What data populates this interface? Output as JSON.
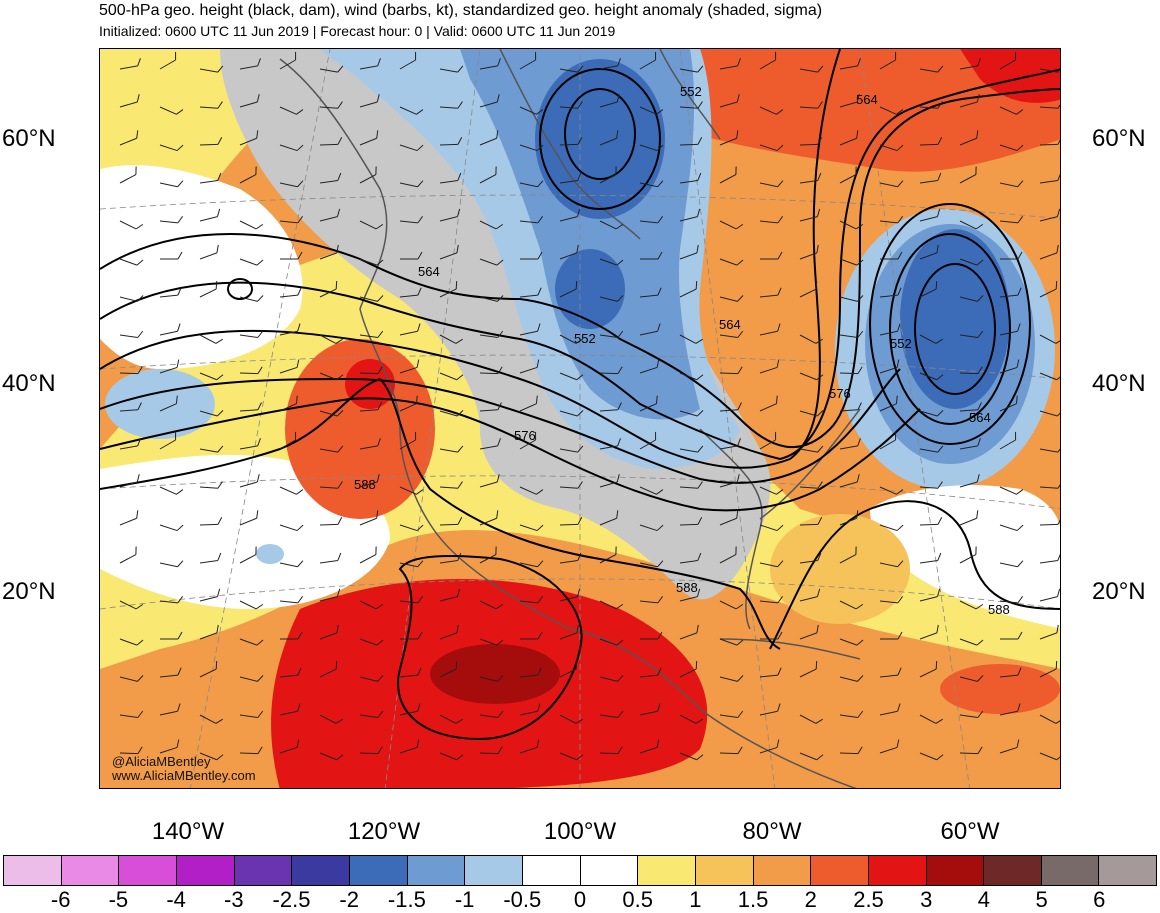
{
  "title": "500-hPa geo. height (black, dam), wind (barbs, kt), standardized geo. height anomaly (shaded, sigma)",
  "subtitle": "Initialized: 0600 UTC 11 Jun 2019 | Forecast hour: 0 | Valid: 0600 UTC 11 Jun 2019",
  "lat_labels": [
    "60°N",
    "40°N",
    "20°N"
  ],
  "lon_labels": [
    "140°W",
    "120°W",
    "100°W",
    "80°W",
    "60°W"
  ],
  "contour_labels": [
    "552",
    "564",
    "564",
    "564",
    "552",
    "576",
    "576",
    "588",
    "588",
    "564",
    "552",
    "588"
  ],
  "credit": {
    "handle": "@AliciaMBentley",
    "url": "www.AliciaMBentley.com"
  },
  "colorbar": {
    "colors": [
      "#ebbde8",
      "#e98ae6",
      "#d94ed8",
      "#b21fc7",
      "#6a33b0",
      "#3a3aa0",
      "#3c6cb8",
      "#6e9bd2",
      "#a7c9e8",
      "#ffffff",
      "#ffffff",
      "#f9e872",
      "#f5c35a",
      "#f29b49",
      "#ee5c2e",
      "#e31414",
      "#a50d0d",
      "#6e2828",
      "#786a69",
      "#a69999"
    ],
    "ticks": [
      "-6",
      "-5",
      "-4",
      "-3",
      "-2.5",
      "-2",
      "-1.5",
      "-1",
      "-0.5",
      "0",
      "0.5",
      "1",
      "1.5",
      "2",
      "2.5",
      "3",
      "4",
      "5",
      "6"
    ]
  },
  "colors": {
    "land_grey": "#c8c8c8",
    "contour": "#000000",
    "coast": "#555555"
  }
}
